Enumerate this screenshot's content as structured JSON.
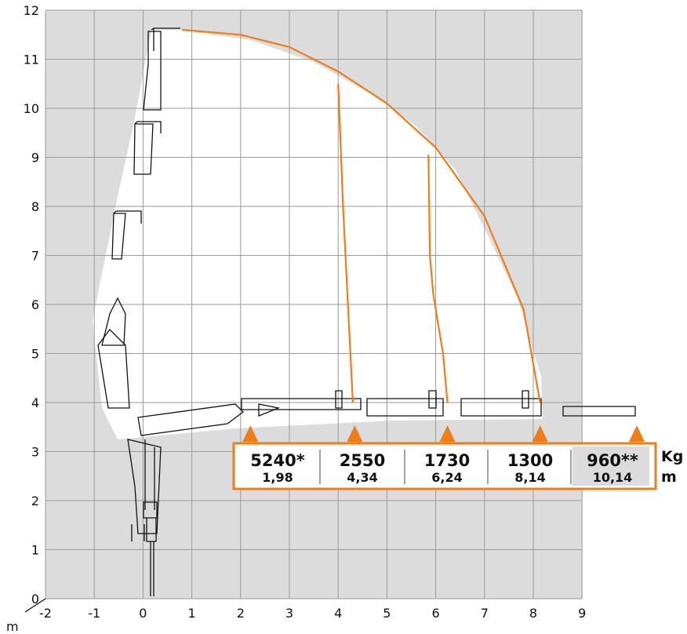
{
  "chart_data": {
    "type": "load_range_diagram",
    "x_axis": {
      "unit": "m",
      "ticks": [
        "-2",
        "-1",
        "0",
        "1",
        "2",
        "3",
        "4",
        "5",
        "6",
        "7",
        "8",
        "9"
      ],
      "range": [
        -2,
        9
      ]
    },
    "y_axis": {
      "ticks": [
        "0",
        "1",
        "2",
        "3",
        "4",
        "5",
        "6",
        "7",
        "8",
        "9",
        "10",
        "11",
        "12"
      ],
      "range": [
        0,
        12
      ]
    },
    "grid": true,
    "capacities": [
      {
        "load": "5240*",
        "reach": "1,98",
        "x": 2.2,
        "highlight": false
      },
      {
        "load": "2550",
        "reach": "4,34",
        "x": 4.34,
        "highlight": false
      },
      {
        "load": "1730",
        "reach": "6,24",
        "x": 6.24,
        "highlight": false
      },
      {
        "load": "1300",
        "reach": "8,14",
        "x": 8.14,
        "highlight": false
      },
      {
        "load": "960**",
        "reach": "10,14",
        "x": 10.14,
        "highlight": true
      }
    ],
    "row_units": {
      "load": "Kg",
      "reach": "m"
    },
    "lift_envelope": [
      [
        0.8,
        11.6
      ],
      [
        2.0,
        11.5
      ],
      [
        3.0,
        11.25
      ],
      [
        4.0,
        10.75
      ],
      [
        5.0,
        10.1
      ],
      [
        6.0,
        9.2
      ],
      [
        7.0,
        7.8
      ],
      [
        7.8,
        5.9
      ],
      [
        8.14,
        4.0
      ]
    ],
    "lift_lines": [
      [
        [
          4.0,
          10.5
        ],
        [
          4.1,
          8.0
        ],
        [
          4.2,
          6.0
        ],
        [
          4.3,
          4.0
        ]
      ],
      [
        [
          5.85,
          9.05
        ],
        [
          5.88,
          7.0
        ],
        [
          5.95,
          6.2
        ],
        [
          6.15,
          5.0
        ],
        [
          6.24,
          4.0
        ]
      ]
    ],
    "colors": {
      "curve": "#ee7d1a",
      "area": "#dcdcdc",
      "grid": "#9a9a9a",
      "line": "#111111"
    }
  }
}
